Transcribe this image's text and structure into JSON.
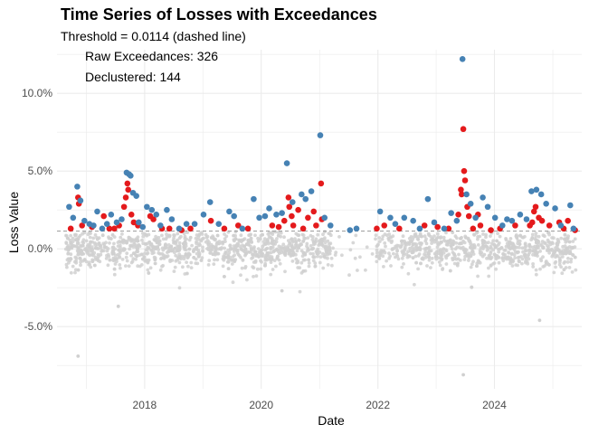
{
  "chart_data": {
    "type": "scatter",
    "title": "Time Series of Losses with Exceedances",
    "subtitle": "Threshold = 0.0114 (dashed line)",
    "xlabel": "Date",
    "ylabel": "Loss Value",
    "x_ticks": [
      "2018",
      "2020",
      "2022",
      "2024"
    ],
    "y_ticks": [
      "-5.0%",
      "0.0%",
      "5.0%",
      "10.0%"
    ],
    "xlim": [
      "2016-07-01",
      "2025-07-01"
    ],
    "ylim": [
      -0.09,
      0.128
    ],
    "threshold": 0.0114,
    "annotations": [
      "Raw Exceedances: 326",
      "Declustered: 144"
    ],
    "grid": true,
    "colors": {
      "non_exceedance": "#d0d0d0",
      "raw_exceedance": "#e41a1c",
      "declustered": "#4682b4",
      "threshold_line": "#999999",
      "grid": "#ebebeb"
    },
    "series": [
      {
        "role": "declustered",
        "points": [
          [
            "2016-09-15",
            0.027
          ],
          [
            "2016-10-10",
            0.02
          ],
          [
            "2016-11-05",
            0.04
          ],
          [
            "2016-11-25",
            0.031
          ],
          [
            "2016-12-20",
            0.018
          ],
          [
            "2017-01-20",
            0.016
          ],
          [
            "2017-02-15",
            0.015
          ],
          [
            "2017-03-10",
            0.024
          ],
          [
            "2017-04-10",
            0.013
          ],
          [
            "2017-05-10",
            0.016
          ],
          [
            "2017-06-05",
            0.022
          ],
          [
            "2017-07-10",
            0.017
          ],
          [
            "2017-08-10",
            0.019
          ],
          [
            "2017-09-10",
            0.049
          ],
          [
            "2017-09-25",
            0.048
          ],
          [
            "2017-10-05",
            0.047
          ],
          [
            "2017-10-20",
            0.036
          ],
          [
            "2017-11-10",
            0.034
          ],
          [
            "2017-11-25",
            0.017
          ],
          [
            "2017-12-20",
            0.014
          ],
          [
            "2018-01-15",
            0.027
          ],
          [
            "2018-02-15",
            0.025
          ],
          [
            "2018-03-15",
            0.022
          ],
          [
            "2018-04-10",
            0.015
          ],
          [
            "2018-05-20",
            0.025
          ],
          [
            "2018-06-20",
            0.019
          ],
          [
            "2018-08-05",
            0.013
          ],
          [
            "2018-09-20",
            0.016
          ],
          [
            "2018-11-10",
            0.016
          ],
          [
            "2019-01-05",
            0.022
          ],
          [
            "2019-02-15",
            0.03
          ],
          [
            "2019-04-10",
            0.016
          ],
          [
            "2019-06-15",
            0.024
          ],
          [
            "2019-07-15",
            0.021
          ],
          [
            "2019-09-05",
            0.013
          ],
          [
            "2019-11-15",
            0.032
          ],
          [
            "2019-12-20",
            0.02
          ],
          [
            "2020-01-25",
            0.021
          ],
          [
            "2020-02-20",
            0.026
          ],
          [
            "2020-04-05",
            0.022
          ],
          [
            "2020-05-10",
            0.023
          ],
          [
            "2020-06-10",
            0.055
          ],
          [
            "2020-07-15",
            0.03
          ],
          [
            "2020-09-10",
            0.035
          ],
          [
            "2020-10-05",
            0.032
          ],
          [
            "2020-11-10",
            0.037
          ],
          [
            "2021-01-05",
            0.073
          ],
          [
            "2021-02-01",
            0.02
          ],
          [
            "2021-03-10",
            0.015
          ],
          [
            "2021-07-10",
            0.012
          ],
          [
            "2021-08-20",
            0.013
          ],
          [
            "2022-01-15",
            0.024
          ],
          [
            "2022-03-20",
            0.02
          ],
          [
            "2022-04-20",
            0.016
          ],
          [
            "2022-06-15",
            0.02
          ],
          [
            "2022-08-10",
            0.018
          ],
          [
            "2022-09-20",
            0.013
          ],
          [
            "2022-11-10",
            0.032
          ],
          [
            "2022-12-20",
            0.017
          ],
          [
            "2023-02-20",
            0.013
          ],
          [
            "2023-04-05",
            0.023
          ],
          [
            "2023-05-10",
            0.018
          ],
          [
            "2023-06-15",
            0.122
          ],
          [
            "2023-07-10",
            0.035
          ],
          [
            "2023-08-05",
            0.029
          ],
          [
            "2023-09-05",
            0.02
          ],
          [
            "2023-10-20",
            0.033
          ],
          [
            "2023-11-20",
            0.027
          ],
          [
            "2024-01-05",
            0.02
          ],
          [
            "2024-02-20",
            0.015
          ],
          [
            "2024-03-20",
            0.019
          ],
          [
            "2024-04-20",
            0.018
          ],
          [
            "2024-06-10",
            0.022
          ],
          [
            "2024-07-20",
            0.019
          ],
          [
            "2024-08-20",
            0.037
          ],
          [
            "2024-09-20",
            0.038
          ],
          [
            "2024-10-20",
            0.035
          ],
          [
            "2024-11-20",
            0.029
          ],
          [
            "2025-01-15",
            0.026
          ],
          [
            "2025-02-20",
            0.015
          ],
          [
            "2025-04-20",
            0.028
          ],
          [
            "2025-05-10",
            0.013
          ]
        ]
      },
      {
        "role": "raw_exceedance",
        "points": [
          [
            "2016-09-25",
            0.013
          ],
          [
            "2016-11-10",
            0.033
          ],
          [
            "2016-11-15",
            0.029
          ],
          [
            "2016-12-05",
            0.015
          ],
          [
            "2017-02-05",
            0.014
          ],
          [
            "2017-04-20",
            0.021
          ],
          [
            "2017-05-25",
            0.013
          ],
          [
            "2017-06-25",
            0.013
          ],
          [
            "2017-07-25",
            0.015
          ],
          [
            "2017-08-25",
            0.027
          ],
          [
            "2017-09-05",
            0.033
          ],
          [
            "2017-09-15",
            0.042
          ],
          [
            "2017-09-20",
            0.038
          ],
          [
            "2017-10-10",
            0.022
          ],
          [
            "2017-10-25",
            0.017
          ],
          [
            "2017-11-20",
            0.015
          ],
          [
            "2018-02-05",
            0.021
          ],
          [
            "2018-02-25",
            0.019
          ],
          [
            "2018-04-20",
            0.013
          ],
          [
            "2018-06-05",
            0.013
          ],
          [
            "2018-08-20",
            0.012
          ],
          [
            "2018-10-15",
            0.013
          ],
          [
            "2019-02-20",
            0.018
          ],
          [
            "2019-05-15",
            0.013
          ],
          [
            "2019-08-10",
            0.015
          ],
          [
            "2019-10-10",
            0.013
          ],
          [
            "2020-03-10",
            0.015
          ],
          [
            "2020-04-20",
            0.014
          ],
          [
            "2020-05-25",
            0.018
          ],
          [
            "2020-06-20",
            0.033
          ],
          [
            "2020-06-25",
            0.027
          ],
          [
            "2020-07-10",
            0.021
          ],
          [
            "2020-07-20",
            0.015
          ],
          [
            "2020-08-20",
            0.025
          ],
          [
            "2020-09-20",
            0.013
          ],
          [
            "2020-10-20",
            0.02
          ],
          [
            "2020-11-25",
            0.024
          ],
          [
            "2020-12-10",
            0.015
          ],
          [
            "2021-01-10",
            0.042
          ],
          [
            "2021-01-15",
            0.019
          ],
          [
            "2021-12-25",
            0.013
          ],
          [
            "2022-02-10",
            0.015
          ],
          [
            "2022-05-15",
            0.013
          ],
          [
            "2022-10-20",
            0.015
          ],
          [
            "2023-01-10",
            0.014
          ],
          [
            "2023-03-20",
            0.013
          ],
          [
            "2023-05-20",
            0.022
          ],
          [
            "2023-06-05",
            0.038
          ],
          [
            "2023-06-10",
            0.035
          ],
          [
            "2023-06-20",
            0.077
          ],
          [
            "2023-06-25",
            0.05
          ],
          [
            "2023-07-01",
            0.044
          ],
          [
            "2023-07-15",
            0.027
          ],
          [
            "2023-07-25",
            0.021
          ],
          [
            "2023-08-20",
            0.013
          ],
          [
            "2023-09-20",
            0.022
          ],
          [
            "2023-10-05",
            0.015
          ],
          [
            "2023-12-10",
            0.012
          ],
          [
            "2024-02-05",
            0.013
          ],
          [
            "2024-05-10",
            0.015
          ],
          [
            "2024-08-10",
            0.015
          ],
          [
            "2024-08-25",
            0.017
          ],
          [
            "2024-09-05",
            0.024
          ],
          [
            "2024-09-15",
            0.027
          ],
          [
            "2024-10-05",
            0.02
          ],
          [
            "2024-10-25",
            0.018
          ],
          [
            "2024-12-10",
            0.015
          ],
          [
            "2025-02-10",
            0.017
          ],
          [
            "2025-03-10",
            0.013
          ],
          [
            "2025-04-05",
            0.018
          ],
          [
            "2025-05-20",
            0.012
          ]
        ]
      }
    ]
  }
}
